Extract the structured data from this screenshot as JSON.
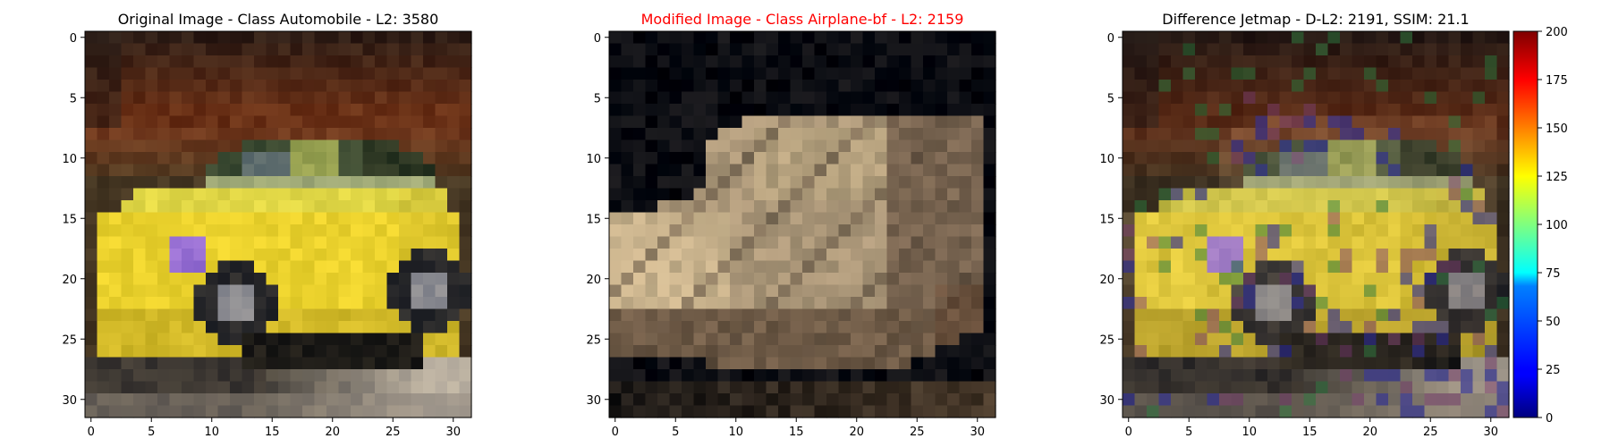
{
  "panels": [
    {
      "title": "Original Image - Class Automobile - L2: 3580",
      "title_color": "#000000",
      "image_kind": "original",
      "x_ticks": [
        "0",
        "5",
        "10",
        "15",
        "20",
        "25",
        "30"
      ],
      "y_ticks": [
        "0",
        "5",
        "10",
        "15",
        "20",
        "25",
        "30"
      ]
    },
    {
      "title": "Modified Image - Class Airplane-bf - L2: 2159",
      "title_color": "#ff0000",
      "image_kind": "modified",
      "x_ticks": [
        "0",
        "5",
        "10",
        "15",
        "20",
        "25",
        "30"
      ],
      "y_ticks": [
        "0",
        "5",
        "10",
        "15",
        "20",
        "25",
        "30"
      ]
    },
    {
      "title": "Difference Jetmap - D-L2: 2191, SSIM: 21.1",
      "title_color": "#000000",
      "image_kind": "difference",
      "x_ticks": [
        "0",
        "5",
        "10",
        "15",
        "20",
        "25",
        "30"
      ],
      "y_ticks": [
        "0",
        "5",
        "10",
        "15",
        "20",
        "25",
        "30"
      ]
    }
  ],
  "colorbar": {
    "colormap": "jet",
    "range": [
      0,
      200
    ],
    "ticks": [
      "0",
      "25",
      "50",
      "75",
      "100",
      "125",
      "150",
      "175",
      "200"
    ]
  }
}
